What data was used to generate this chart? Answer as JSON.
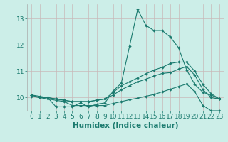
{
  "title": "",
  "xlabel": "Humidex (Indice chaleur)",
  "x": [
    0,
    1,
    2,
    3,
    4,
    5,
    6,
    7,
    8,
    9,
    10,
    11,
    12,
    13,
    14,
    15,
    16,
    17,
    18,
    19,
    20,
    21,
    22,
    23
  ],
  "line1": [
    10.1,
    10.0,
    10.0,
    9.65,
    9.65,
    9.65,
    9.8,
    9.65,
    9.75,
    9.8,
    10.25,
    10.55,
    11.95,
    13.35,
    12.75,
    12.55,
    12.55,
    12.3,
    11.9,
    11.05,
    10.5,
    10.2,
    10.1,
    9.95
  ],
  "line2": [
    10.1,
    10.05,
    10.0,
    9.95,
    9.9,
    9.85,
    9.85,
    9.85,
    9.9,
    9.95,
    10.2,
    10.45,
    10.6,
    10.75,
    10.9,
    11.05,
    11.15,
    11.3,
    11.35,
    11.35,
    11.0,
    10.5,
    10.15,
    9.95
  ],
  "line3": [
    10.1,
    10.0,
    10.0,
    9.95,
    9.9,
    9.85,
    9.85,
    9.85,
    9.9,
    9.95,
    10.1,
    10.3,
    10.45,
    10.6,
    10.7,
    10.82,
    10.92,
    10.95,
    11.08,
    11.18,
    10.85,
    10.3,
    10.0,
    9.95
  ],
  "line4": [
    10.05,
    10.0,
    9.95,
    9.9,
    9.85,
    9.7,
    9.7,
    9.7,
    9.7,
    9.7,
    9.78,
    9.85,
    9.92,
    9.98,
    10.05,
    10.12,
    10.22,
    10.32,
    10.42,
    10.52,
    10.22,
    9.7,
    9.5,
    9.5
  ],
  "line_color": "#1a7a6e",
  "bg_color": "#cceee8",
  "grid_color": "#c8b8b8",
  "ylim": [
    9.5,
    13.55
  ],
  "xlim": [
    -0.5,
    23.5
  ],
  "yticks": [
    10,
    11,
    12,
    13
  ],
  "xticks": [
    0,
    1,
    2,
    3,
    4,
    5,
    6,
    7,
    8,
    9,
    10,
    11,
    12,
    13,
    14,
    15,
    16,
    17,
    18,
    19,
    20,
    21,
    22,
    23
  ],
  "tick_fontsize": 6.5,
  "xlabel_fontsize": 7.5,
  "marker": "D",
  "marker_size": 2.2,
  "lw": 0.8
}
